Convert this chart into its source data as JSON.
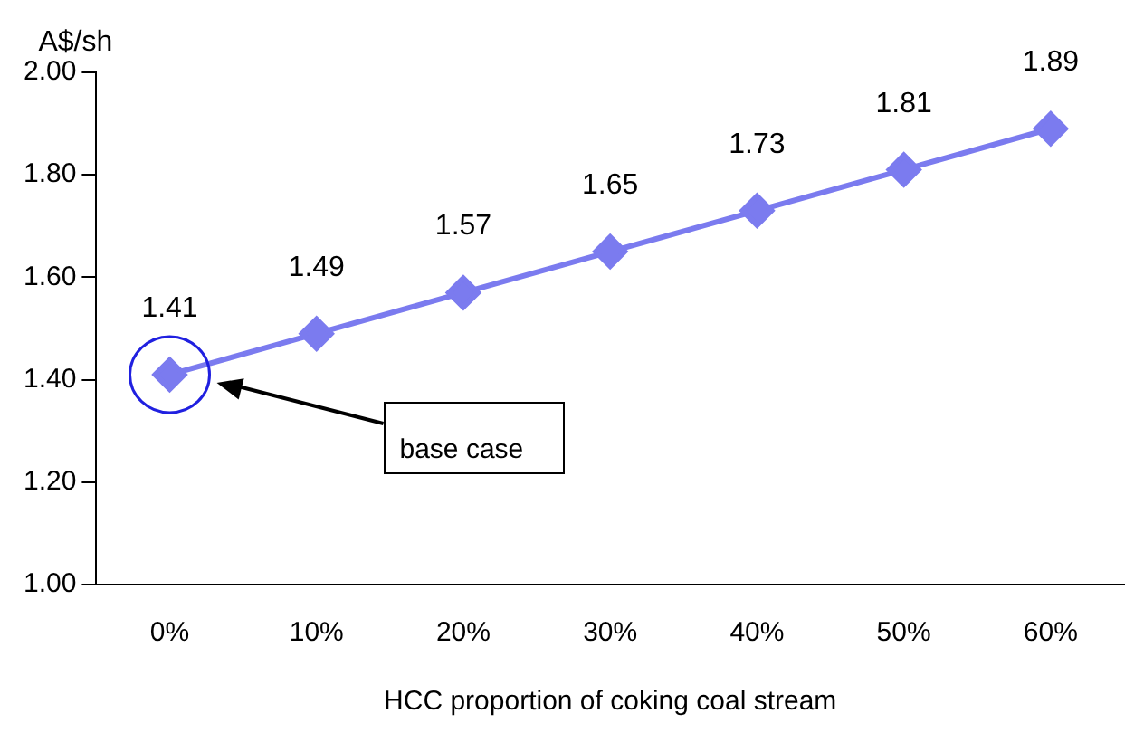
{
  "chart_data": {
    "type": "line",
    "ylabel": "A$/sh",
    "xlabel": "HCC proportion of coking coal stream",
    "categories": [
      "0%",
      "10%",
      "20%",
      "30%",
      "40%",
      "50%",
      "60%"
    ],
    "values": [
      1.41,
      1.49,
      1.57,
      1.65,
      1.73,
      1.81,
      1.89
    ],
    "color": "#7b7bef",
    "ylim": [
      1,
      2
    ],
    "yticks": [
      {
        "value": 1,
        "label": "1.00"
      },
      {
        "value": 1.2,
        "label": "1.20"
      },
      {
        "value": 1.4,
        "label": "1.40"
      },
      {
        "value": 1.6,
        "label": "1.60"
      },
      {
        "value": 1.8,
        "label": "1.80"
      },
      {
        "value": 2,
        "label": "2.00"
      }
    ],
    "grid": false,
    "legend": false,
    "marker": "diamond",
    "line_style": "solid",
    "data_labels": true,
    "annotations": [
      "base case"
    ]
  }
}
